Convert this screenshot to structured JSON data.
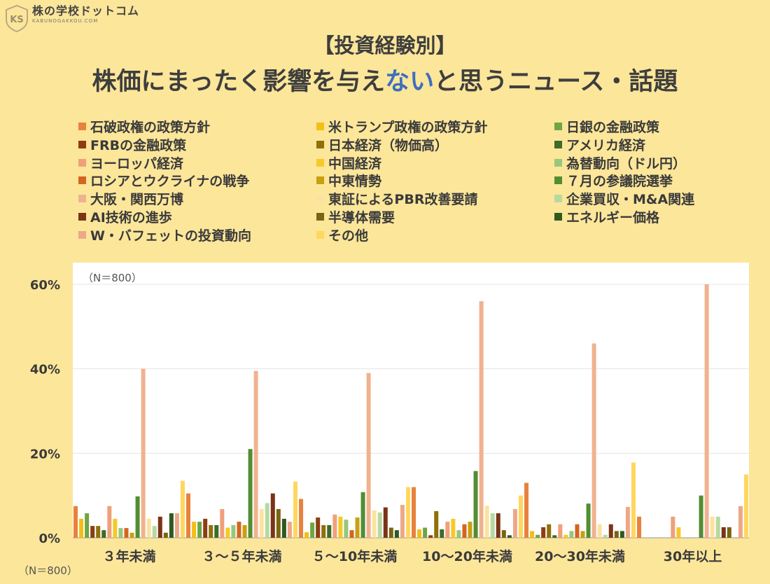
{
  "brand": {
    "mark": "KS",
    "name": "株の学校ドットコム",
    "sub": "KABUNOGAKKOU.COM"
  },
  "header": {
    "title_line1": "【投資経験別】",
    "title_line2_pre": "株価にまったく影響を与え",
    "title_line2_hl": "ない",
    "title_line2_post": "と思うニュース・話題"
  },
  "note_inner": "（N＝800）",
  "note_outer": "（N＝800）",
  "colors": {
    "background": "#FCE69A",
    "plot_bg": "#FFFFFF",
    "highlight": "#3D6FBF"
  },
  "chart_data": {
    "type": "bar",
    "title": "株価にまったく影響を与えないと思うニュース・話題",
    "ylim": [
      0,
      60
    ],
    "yticks": [
      "0%",
      "20%",
      "40%",
      "60%"
    ],
    "grid": true,
    "legend_position": "top",
    "categories": [
      "３年未満",
      "３～５年未満",
      "５～10年未満",
      "10～20年未満",
      "20～30年未満",
      "30年以上"
    ],
    "series": [
      {
        "name": "石破政権の政策方針",
        "color": "#E8823B",
        "values": [
          7.5,
          10.5,
          9.2,
          12,
          13,
          5
        ]
      },
      {
        "name": "米トランプ政権の政策方針",
        "color": "#F4BE16",
        "values": [
          4.5,
          3.8,
          1.3,
          2,
          1.6,
          0
        ]
      },
      {
        "name": "日銀の金融政策",
        "color": "#6FA544",
        "values": [
          5.8,
          3.8,
          3.6,
          2.4,
          0.7,
          0
        ]
      },
      {
        "name": "FRBの金融政策",
        "color": "#8C3E12",
        "values": [
          2.8,
          4.5,
          4.8,
          0.6,
          2.5,
          0
        ]
      },
      {
        "name": "日本経済（物価高）",
        "color": "#8F7009",
        "values": [
          2.8,
          3,
          3,
          6.3,
          3.2,
          0
        ]
      },
      {
        "name": "アメリカ経済",
        "color": "#3E6B27",
        "values": [
          1.8,
          3,
          3,
          2,
          0.6,
          0
        ]
      },
      {
        "name": "ヨーロッパ経済",
        "color": "#EFA07A",
        "values": [
          7.5,
          6.8,
          5.5,
          3.8,
          3.2,
          5
        ]
      },
      {
        "name": "中国経済",
        "color": "#F7C927",
        "values": [
          4.5,
          2.4,
          5,
          4.5,
          0.7,
          2.5
        ]
      },
      {
        "name": "為替動向（ドル円）",
        "color": "#97C77B",
        "values": [
          2.3,
          3,
          4.3,
          1.8,
          1.6,
          0
        ]
      },
      {
        "name": "ロシアとウクライナの戦争",
        "color": "#D6641F",
        "values": [
          2.3,
          3.8,
          1.8,
          3.2,
          3.2,
          0
        ]
      },
      {
        "name": "中東情勢",
        "color": "#C8A010",
        "values": [
          1.2,
          3,
          4.8,
          3.8,
          1.6,
          0
        ]
      },
      {
        "name": "７月の参議院選挙",
        "color": "#528D33",
        "values": [
          9.8,
          21,
          10.8,
          15.8,
          8.1,
          10
        ]
      },
      {
        "name": "大阪・関西万博",
        "color": "#F0B28E",
        "values": [
          40,
          39.5,
          39,
          56,
          46,
          60
        ]
      },
      {
        "name": "東証によるPBR改善要請",
        "color": "#FCE2A0",
        "values": [
          4.5,
          6.8,
          6.5,
          7.6,
          3.2,
          5
        ]
      },
      {
        "name": "企業買収・M&A関連",
        "color": "#B7D9A0",
        "values": [
          2.8,
          8.2,
          6,
          5.8,
          0.7,
          5
        ]
      },
      {
        "name": "AI技術の進歩",
        "color": "#7A3416",
        "values": [
          5,
          10.5,
          7.2,
          5.8,
          3.2,
          2.5
        ]
      },
      {
        "name": "半導体需要",
        "color": "#7B6410",
        "values": [
          1.2,
          6.8,
          2.4,
          1.8,
          1.6,
          2.5
        ]
      },
      {
        "name": "エネルギー価格",
        "color": "#2F5A1E",
        "values": [
          5.8,
          4.5,
          1.8,
          0.6,
          1.6,
          0
        ]
      },
      {
        "name": "W・バフェットの投資動向",
        "color": "#EDA887",
        "values": [
          5.8,
          3.8,
          7.8,
          6.8,
          7.3,
          7.5
        ]
      },
      {
        "name": "その他",
        "color": "#FFD75E",
        "values": [
          13.5,
          13.3,
          12,
          10,
          17.8,
          15
        ]
      }
    ]
  }
}
